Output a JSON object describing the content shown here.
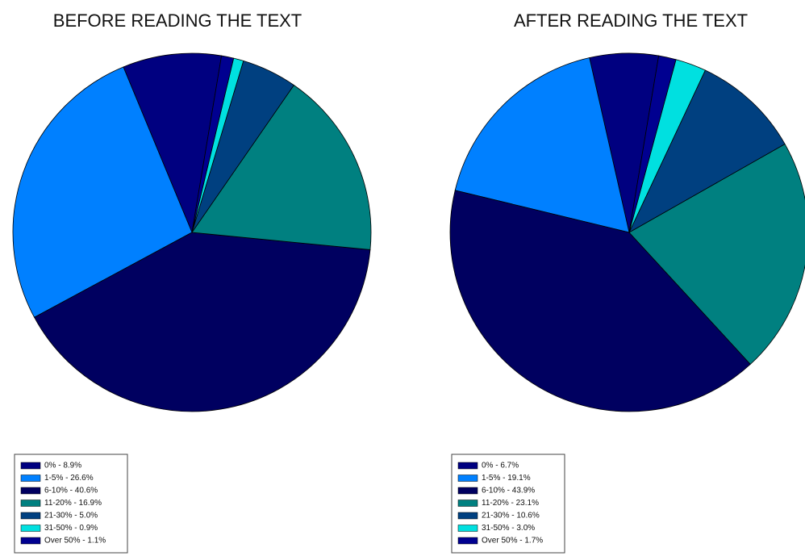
{
  "chart_data": [
    {
      "type": "pie",
      "title": "BEFORE READING THE TEXT",
      "categories": [
        "0% - 8.9%",
        "1-5% - 26.6%",
        "6-10% - 40.6%",
        "11-20% - 16.9%",
        "21-30% - 5.0%",
        "31-50% - 0.9%",
        "Over 50% - 1.1%"
      ],
      "values": [
        8.9,
        26.6,
        40.6,
        16.9,
        5.0,
        0.9,
        1.1
      ],
      "colors": [
        "#000080",
        "#0080ff",
        "#000060",
        "#008080",
        "#004080",
        "#00e0e0",
        "#000090"
      ]
    },
    {
      "type": "pie",
      "title": "AFTER READING THE TEXT",
      "categories": [
        "0% - 6.7%",
        "1-5% - 19.1%",
        "6-10% - 43.9%",
        "11-20% - 23.1%",
        "21-30% - 10.6%",
        "31-50% - 3.0%",
        "Over 50% - 1.7%"
      ],
      "values": [
        6.7,
        19.1,
        43.9,
        23.1,
        10.6,
        3.0,
        1.7
      ],
      "colors": [
        "#000080",
        "#0080ff",
        "#000060",
        "#008080",
        "#004080",
        "#00e0e0",
        "#000090"
      ]
    }
  ]
}
